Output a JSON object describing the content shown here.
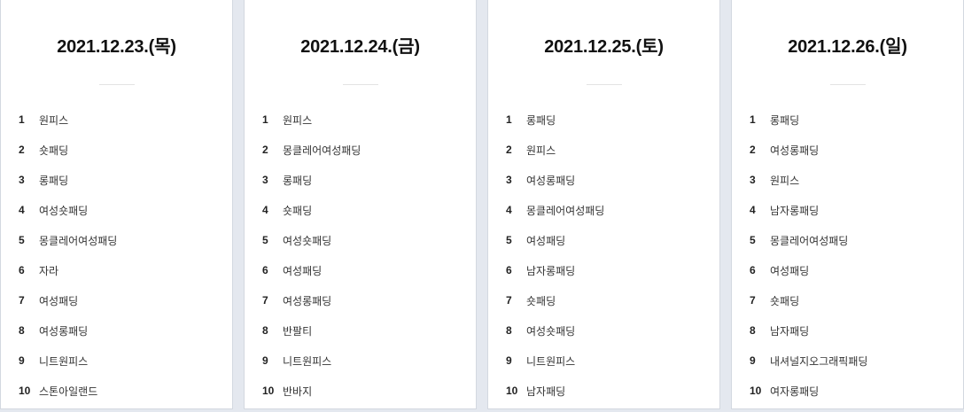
{
  "columns": [
    {
      "date": "2021.12.23.(목)",
      "items": [
        {
          "rank": "1",
          "keyword": "원피스"
        },
        {
          "rank": "2",
          "keyword": "숏패딩"
        },
        {
          "rank": "3",
          "keyword": "롱패딩"
        },
        {
          "rank": "4",
          "keyword": "여성숏패딩"
        },
        {
          "rank": "5",
          "keyword": "몽클레어여성패딩"
        },
        {
          "rank": "6",
          "keyword": "자라"
        },
        {
          "rank": "7",
          "keyword": "여성패딩"
        },
        {
          "rank": "8",
          "keyword": "여성롱패딩"
        },
        {
          "rank": "9",
          "keyword": "니트원피스"
        },
        {
          "rank": "10",
          "keyword": "스톤아일랜드"
        }
      ]
    },
    {
      "date": "2021.12.24.(금)",
      "items": [
        {
          "rank": "1",
          "keyword": "원피스"
        },
        {
          "rank": "2",
          "keyword": "몽클레어여성패딩"
        },
        {
          "rank": "3",
          "keyword": "롱패딩"
        },
        {
          "rank": "4",
          "keyword": "숏패딩"
        },
        {
          "rank": "5",
          "keyword": "여성숏패딩"
        },
        {
          "rank": "6",
          "keyword": "여성패딩"
        },
        {
          "rank": "7",
          "keyword": "여성롱패딩"
        },
        {
          "rank": "8",
          "keyword": "반팔티"
        },
        {
          "rank": "9",
          "keyword": "니트원피스"
        },
        {
          "rank": "10",
          "keyword": "반바지"
        }
      ]
    },
    {
      "date": "2021.12.25.(토)",
      "items": [
        {
          "rank": "1",
          "keyword": "롱패딩"
        },
        {
          "rank": "2",
          "keyword": "원피스"
        },
        {
          "rank": "3",
          "keyword": "여성롱패딩"
        },
        {
          "rank": "4",
          "keyword": "몽클레어여성패딩"
        },
        {
          "rank": "5",
          "keyword": "여성패딩"
        },
        {
          "rank": "6",
          "keyword": "남자롱패딩"
        },
        {
          "rank": "7",
          "keyword": "숏패딩"
        },
        {
          "rank": "8",
          "keyword": "여성숏패딩"
        },
        {
          "rank": "9",
          "keyword": "니트원피스"
        },
        {
          "rank": "10",
          "keyword": "남자패딩"
        }
      ]
    },
    {
      "date": "2021.12.26.(일)",
      "items": [
        {
          "rank": "1",
          "keyword": "롱패딩"
        },
        {
          "rank": "2",
          "keyword": "여성롱패딩"
        },
        {
          "rank": "3",
          "keyword": "원피스"
        },
        {
          "rank": "4",
          "keyword": "남자롱패딩"
        },
        {
          "rank": "5",
          "keyword": "몽클레어여성패딩"
        },
        {
          "rank": "6",
          "keyword": "여성패딩"
        },
        {
          "rank": "7",
          "keyword": "숏패딩"
        },
        {
          "rank": "8",
          "keyword": "남자패딩"
        },
        {
          "rank": "9",
          "keyword": "내셔널지오그래픽패딩"
        },
        {
          "rank": "10",
          "keyword": "여자롱패딩"
        }
      ]
    }
  ]
}
